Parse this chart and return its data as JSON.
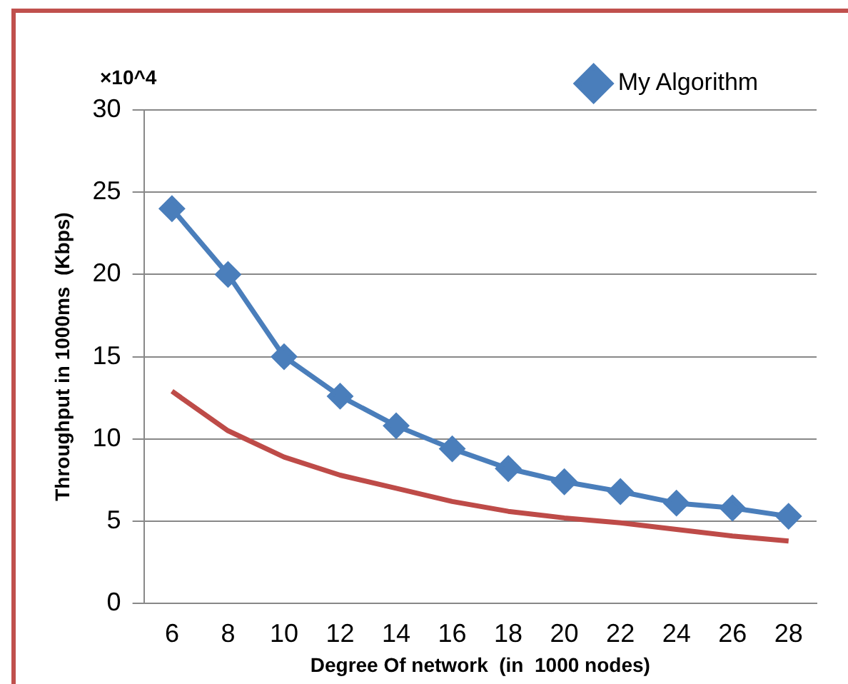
{
  "chart_data": {
    "type": "line",
    "xlabel": "Degree Of network  (in  1000 nodes)",
    "ylabel": "Throughput in 1000ms  (Kbps)",
    "categories": [
      "6",
      "8",
      "10",
      "12",
      "14",
      "16",
      "18",
      "20",
      "22",
      "24",
      "26",
      "28"
    ],
    "series": [
      {
        "name": "My Algorithm",
        "color": "#4a7ebb",
        "marker": "diamond",
        "values": [
          24,
          20,
          15,
          12.6,
          10.8,
          9.4,
          8.2,
          7.4,
          6.8,
          6.1,
          5.8,
          5.3
        ]
      },
      {
        "color": "#be4b48",
        "marker": "none",
        "values": [
          12.9,
          10.5,
          8.9,
          7.8,
          7.0,
          6.2,
          5.6,
          5.2,
          4.9,
          4.5,
          4.1,
          3.8
        ]
      }
    ],
    "ylim": [
      0,
      30
    ],
    "yticks": [
      0,
      5,
      10,
      15,
      20,
      25,
      30
    ],
    "grid": "y",
    "legend": "top right",
    "annotations": [
      "×10^4"
    ]
  }
}
